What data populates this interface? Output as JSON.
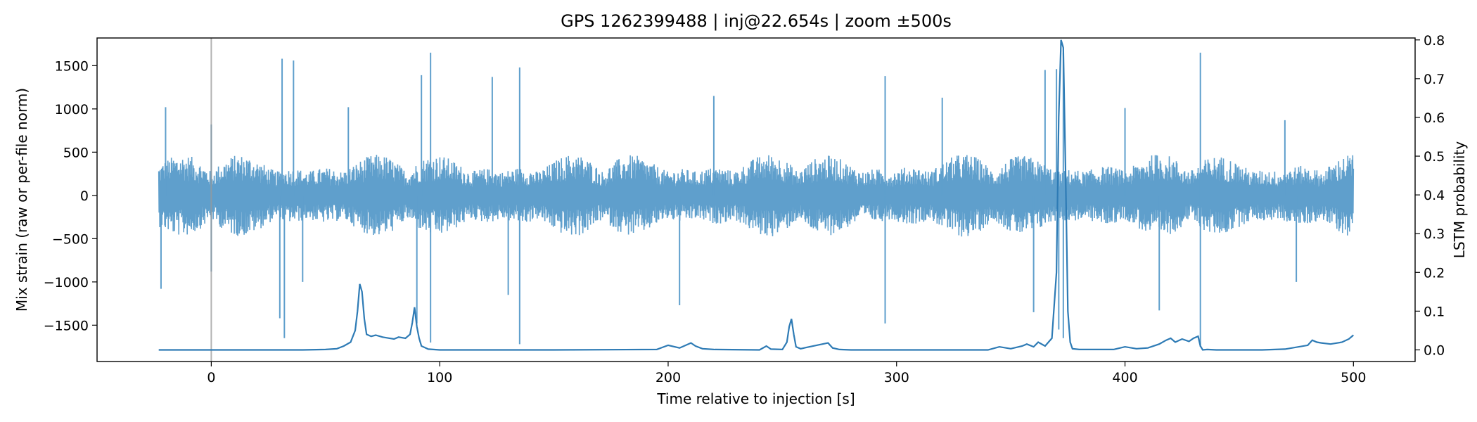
{
  "chart_data": {
    "type": "line",
    "title": "GPS 1262399488 | inj@22.654s | zoom ±500s",
    "xlabel": "Time relative to injection [s]",
    "ylabel_left": "Mix strain (raw or per-file norm)",
    "ylabel_right": "LSTM probability",
    "xlim": [
      -50,
      527
    ],
    "ylim_left": [
      -1920,
      1820
    ],
    "ylim_right": [
      -0.03,
      0.805
    ],
    "x_ticks": [
      0,
      100,
      200,
      300,
      400,
      500
    ],
    "y_ticks_left": [
      -1500,
      -1000,
      -500,
      0,
      500,
      1000,
      1500
    ],
    "y_ticks_right": [
      0.0,
      0.1,
      0.2,
      0.3,
      0.4,
      0.5,
      0.6,
      0.7,
      0.8
    ],
    "x_tick_labels": [
      "0",
      "100",
      "200",
      "300",
      "400",
      "500"
    ],
    "y_tick_labels_left": [
      "−1500",
      "−1000",
      "−500",
      "0",
      "500",
      "1000",
      "1500"
    ],
    "y_tick_labels_right": [
      "0.0",
      "0.1",
      "0.2",
      "0.3",
      "0.4",
      "0.5",
      "0.6",
      "0.7",
      "0.8"
    ],
    "vertical_marker_x": 0,
    "grid": false,
    "series": [
      {
        "color": "#5f9fcc",
        "axis": "left",
        "x_range": [
          -23,
          500
        ],
        "baseline_amplitude": 500,
        "spikes": [
          {
            "x": -20,
            "y": 1020
          },
          {
            "x": -22,
            "y": -1080
          },
          {
            "x": 0,
            "y": 820
          },
          {
            "x": 0,
            "y": -880
          },
          {
            "x": 30,
            "y": -1420
          },
          {
            "x": 31,
            "y": 1580
          },
          {
            "x": 32,
            "y": -1650
          },
          {
            "x": 36,
            "y": 1560
          },
          {
            "x": 40,
            "y": -1000
          },
          {
            "x": 60,
            "y": 1020
          },
          {
            "x": 90,
            "y": -1480
          },
          {
            "x": 92,
            "y": 1390
          },
          {
            "x": 96,
            "y": 1650
          },
          {
            "x": 96,
            "y": -1700
          },
          {
            "x": 123,
            "y": 1370
          },
          {
            "x": 130,
            "y": -1150
          },
          {
            "x": 135,
            "y": 1480
          },
          {
            "x": 135,
            "y": -1720
          },
          {
            "x": 205,
            "y": -1270
          },
          {
            "x": 220,
            "y": 1150
          },
          {
            "x": 295,
            "y": 1380
          },
          {
            "x": 295,
            "y": -1480
          },
          {
            "x": 320,
            "y": 1130
          },
          {
            "x": 360,
            "y": -1350
          },
          {
            "x": 365,
            "y": 1450
          },
          {
            "x": 370,
            "y": 1460
          },
          {
            "x": 371,
            "y": -1550
          },
          {
            "x": 373,
            "y": 1650
          },
          {
            "x": 373,
            "y": -1650
          },
          {
            "x": 400,
            "y": 1010
          },
          {
            "x": 415,
            "y": -1330
          },
          {
            "x": 433,
            "y": 1650
          },
          {
            "x": 433,
            "y": -1750
          },
          {
            "x": 470,
            "y": 870
          },
          {
            "x": 475,
            "y": -1000
          }
        ]
      },
      {
        "color": "#2e7bb5",
        "axis": "right",
        "x": [
          -23,
          40,
          50,
          55,
          58,
          61,
          63,
          64,
          65,
          66,
          67,
          68,
          70,
          72,
          75,
          78,
          80,
          82,
          85,
          86,
          87,
          88,
          89,
          90,
          91,
          92,
          95,
          100,
          150,
          195,
          200,
          205,
          210,
          212,
          215,
          220,
          240,
          243,
          245,
          250,
          252,
          253,
          254,
          255,
          256,
          258,
          265,
          270,
          272,
          275,
          280,
          340,
          345,
          350,
          355,
          357,
          360,
          362,
          365,
          368,
          370,
          371,
          372,
          373,
          374,
          375,
          376,
          377,
          380,
          395,
          400,
          405,
          410,
          415,
          418,
          420,
          422,
          425,
          428,
          430,
          432,
          433,
          434,
          436,
          440,
          460,
          470,
          480,
          482,
          484,
          486,
          490,
          495,
          498,
          500
        ],
        "y": [
          0.0,
          0.0,
          0.001,
          0.003,
          0.01,
          0.02,
          0.05,
          0.1,
          0.17,
          0.15,
          0.08,
          0.04,
          0.035,
          0.038,
          0.033,
          0.03,
          0.028,
          0.033,
          0.03,
          0.035,
          0.04,
          0.07,
          0.11,
          0.06,
          0.03,
          0.01,
          0.002,
          0.0,
          0.0,
          0.001,
          0.012,
          0.005,
          0.018,
          0.01,
          0.003,
          0.001,
          0.0,
          0.01,
          0.002,
          0.001,
          0.02,
          0.06,
          0.08,
          0.04,
          0.008,
          0.003,
          0.012,
          0.018,
          0.005,
          0.001,
          0.0,
          0.0,
          0.008,
          0.003,
          0.01,
          0.015,
          0.008,
          0.02,
          0.01,
          0.03,
          0.2,
          0.6,
          0.8,
          0.78,
          0.45,
          0.1,
          0.02,
          0.003,
          0.001,
          0.001,
          0.008,
          0.003,
          0.005,
          0.015,
          0.025,
          0.03,
          0.02,
          0.028,
          0.022,
          0.03,
          0.035,
          0.01,
          0.0,
          0.001,
          0.0,
          0.0,
          0.002,
          0.012,
          0.025,
          0.02,
          0.018,
          0.015,
          0.02,
          0.028,
          0.038
        ]
      }
    ]
  }
}
